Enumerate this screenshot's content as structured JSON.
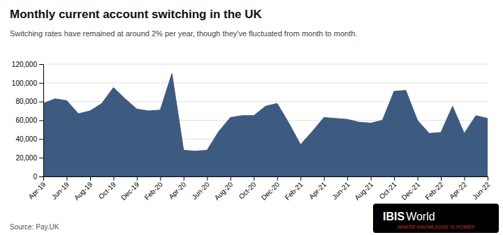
{
  "chart_data": {
    "type": "area",
    "title": "Monthly current account switching in the UK",
    "subtitle": "Switching rates have remained at around 2% per year, though they've fluctuated from month to month.",
    "source": "Source: Pay.UK",
    "annotations": [
      "IBIS",
      "World",
      "WHERE KNOWLEDGE IS POWER"
    ],
    "color": "#3d5a80",
    "categories": [
      "Apr-19",
      null,
      "Jun-19",
      null,
      "Aug-19",
      null,
      "Oct-19",
      null,
      "Dec-19",
      null,
      "Feb-20",
      null,
      "Apr-20",
      null,
      "Jun-20",
      null,
      "Aug-20",
      null,
      "Oct-20",
      null,
      "Dec-20",
      null,
      "Feb-21",
      null,
      "Apr-21",
      null,
      "Jun-21",
      null,
      "Aug-21",
      null,
      "Oct-21",
      null,
      "Dec-21",
      null,
      "Feb-22",
      null,
      "Apr-22",
      null,
      "Jun-22"
    ],
    "values": [
      78000,
      83000,
      81000,
      67000,
      70000,
      78000,
      95000,
      83000,
      72000,
      70000,
      71000,
      110000,
      28000,
      27000,
      28000,
      48000,
      63000,
      65000,
      65000,
      75000,
      78000,
      57000,
      34000,
      48000,
      63000,
      62000,
      61000,
      58000,
      57000,
      60000,
      91000,
      92000,
      60000,
      46000,
      47000,
      75000,
      46000,
      65000,
      62000
    ],
    "ylim": [
      0,
      120000
    ],
    "yticks": [
      0,
      {
        "value": 20000,
        "label": "20,000"
      },
      {
        "value": 40000,
        "label": "40,000"
      },
      {
        "value": 60000,
        "label": "60,000"
      },
      {
        "value": 80000,
        "label": "80,000"
      },
      {
        "value": 100000,
        "label": "100,000"
      },
      {
        "value": 120000,
        "label": "120,000"
      }
    ],
    "grid": true
  }
}
